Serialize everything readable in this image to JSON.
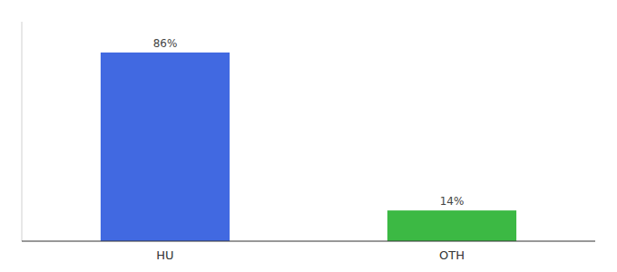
{
  "chart_data": {
    "type": "bar",
    "categories": [
      "HU",
      "OTH"
    ],
    "values": [
      86,
      14
    ],
    "value_labels": [
      "86%",
      "14%"
    ],
    "colors": [
      "#4169E1",
      "#3CB944"
    ],
    "ylim": [
      0,
      100
    ],
    "data_labels": true,
    "tick_labels": "x"
  }
}
